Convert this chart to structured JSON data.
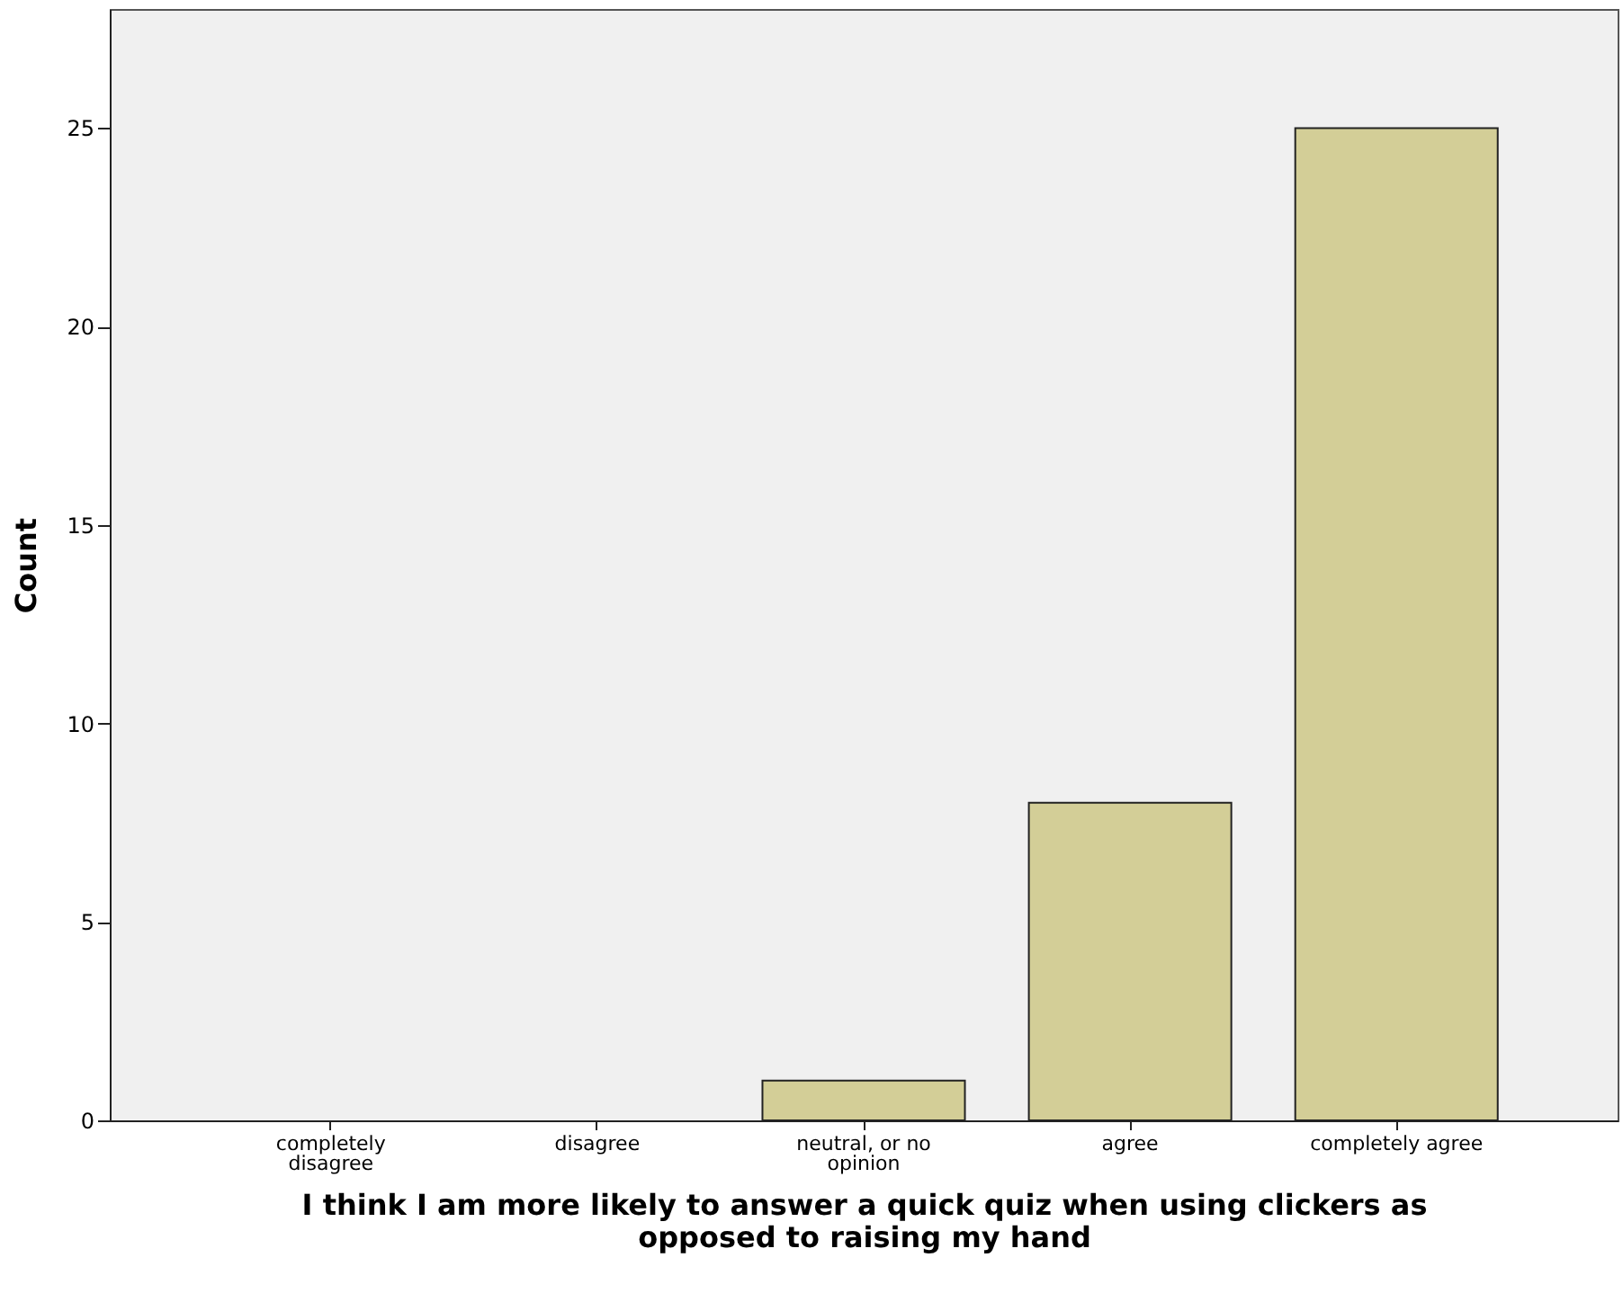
{
  "chart_data": {
    "type": "bar",
    "xlabel": "I think I am more likely to answer a quick quiz when using clickers as opposed to raising my hand",
    "ylabel": "Count",
    "categories": [
      "completely disagree",
      "disagree",
      "neutral, or no opinion",
      "agree",
      "completely agree"
    ],
    "values": [
      0,
      0,
      1,
      8,
      25
    ],
    "color": "#d3ce97",
    "ylim": [
      0,
      28
    ],
    "yticks": [
      0,
      5,
      10,
      15,
      20,
      25
    ],
    "grid": false
  }
}
